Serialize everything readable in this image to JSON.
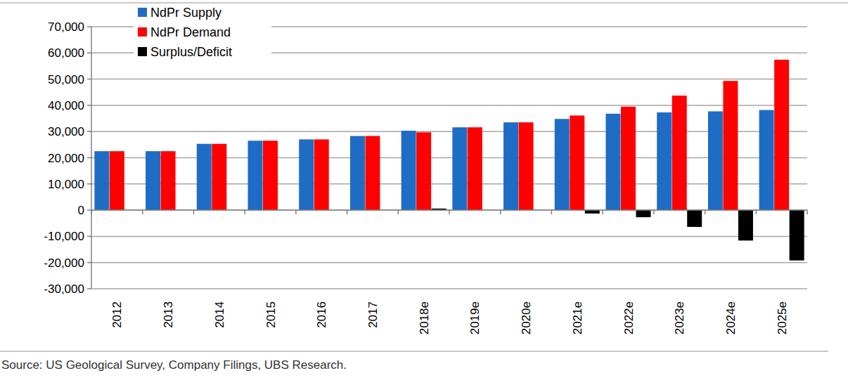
{
  "chart_data": {
    "type": "bar",
    "categories": [
      "2012",
      "2013",
      "2014",
      "2015",
      "2016",
      "2017",
      "2018e",
      "2019e",
      "2020e",
      "2021e",
      "2022e",
      "2023e",
      "2024e",
      "2025e"
    ],
    "series": [
      {
        "name": "NdPr Supply",
        "color": "#1f6cc4",
        "values": [
          22500,
          22500,
          25300,
          26500,
          27000,
          28300,
          30300,
          31600,
          33500,
          34800,
          36800,
          37300,
          37700,
          38200
        ]
      },
      {
        "name": "NdPr Demand",
        "color": "#ff0000",
        "values": [
          22500,
          22500,
          25300,
          26500,
          27000,
          28300,
          29700,
          31600,
          33500,
          36100,
          39500,
          43700,
          49300,
          57400
        ]
      },
      {
        "name": "Surplus/Deficit",
        "color": "#000000",
        "values": [
          0,
          0,
          0,
          0,
          0,
          0,
          600,
          0,
          0,
          -1300,
          -2700,
          -6400,
          -11600,
          -19200
        ]
      }
    ],
    "ylim": [
      -30000,
      70000
    ],
    "yticks": [
      {
        "value": -30000,
        "label": "-30,000"
      },
      {
        "value": -20000,
        "label": "-20,000"
      },
      {
        "value": -10000,
        "label": "-10,000"
      },
      0,
      {
        "value": 10000,
        "label": "10,000"
      },
      {
        "value": 20000,
        "label": "20,000"
      },
      {
        "value": 30000,
        "label": "30,000"
      },
      {
        "value": 40000,
        "label": "40,000"
      },
      {
        "value": 50000,
        "label": "50,000"
      },
      {
        "value": 60000,
        "label": "60,000"
      },
      {
        "value": 70000,
        "label": "70,000"
      }
    ],
    "grid": true,
    "legend": "top-left",
    "annotations": [
      "Source:  US Geological Survey, Company Filings, UBS Research."
    ]
  }
}
